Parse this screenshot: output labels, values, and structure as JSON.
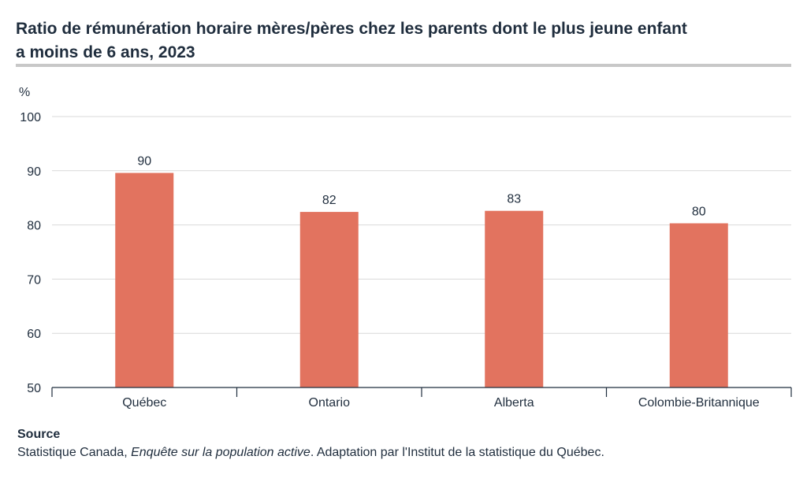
{
  "title_line1": "Ratio de rémunération horaire mères/pères chez les parents dont le plus jeune enfant",
  "title_line2": "a moins de 6 ans, 2023",
  "chart_data": {
    "type": "bar",
    "ylabel": "%",
    "categories": [
      "Québec",
      "Ontario",
      "Alberta",
      "Colombie-Britannique"
    ],
    "values": [
      89.6,
      82.4,
      82.6,
      80.3
    ],
    "data_labels": [
      "90",
      "82",
      "83",
      "80"
    ],
    "ylim": [
      50,
      100
    ],
    "yticks": [
      50,
      60,
      70,
      80,
      90,
      100
    ],
    "grid": true,
    "bar_color": "#e2735f"
  },
  "source": {
    "heading": "Source",
    "prefix": "Statistique Canada, ",
    "survey": "Enquête sur la population active",
    "suffix": ". Adaptation par l'Institut de la statistique du Québec."
  }
}
